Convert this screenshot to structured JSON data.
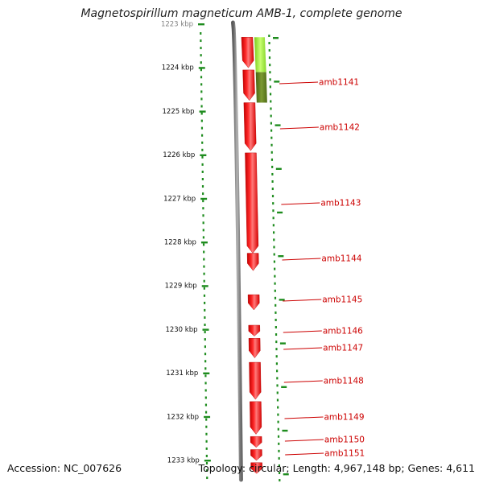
{
  "title": "Magnetospirillum magneticum AMB-1, complete genome",
  "accession": "Accession: NC_007626",
  "summary": "Topology: circular; Length: 4,967,148 bp; Genes: 4,611",
  "colors": {
    "gene_fill": "#ff0000",
    "gene_highlight": "#ff8a8a",
    "backbone": "#808080",
    "tick": "#1e8c1e",
    "label": "#cc0000",
    "label_line": "#cc0000",
    "feature_light": "#99e633",
    "feature_dark": "#5c7a1a"
  },
  "ruler": {
    "unit": "kbp",
    "start_kbp": 1223.3,
    "end_kbp": 1233.3,
    "ticks": [
      {
        "kbp": 1223,
        "label": "1223 kbp"
      },
      {
        "kbp": 1224,
        "label": "1224 kbp"
      },
      {
        "kbp": 1225,
        "label": "1225 kbp"
      },
      {
        "kbp": 1226,
        "label": "1226 kbp"
      },
      {
        "kbp": 1227,
        "label": "1227 kbp"
      },
      {
        "kbp": 1228,
        "label": "1228 kbp"
      },
      {
        "kbp": 1229,
        "label": "1229 kbp"
      },
      {
        "kbp": 1230,
        "label": "1230 kbp"
      },
      {
        "kbp": 1231,
        "label": "1231 kbp"
      },
      {
        "kbp": 1232,
        "label": "1232 kbp"
      },
      {
        "kbp": 1233,
        "label": "1233 kbp"
      }
    ]
  },
  "genes": [
    {
      "name": "amb1141",
      "start_kbp": 1223.3,
      "end_kbp": 1224.0
    },
    {
      "name": "amb1142",
      "start_kbp": 1224.05,
      "end_kbp": 1224.75
    },
    {
      "name": "amb1143",
      "start_kbp": 1224.8,
      "end_kbp": 1225.9
    },
    {
      "name": "amb1144",
      "start_kbp": 1225.95,
      "end_kbp": 1228.25
    },
    {
      "name": "amb1145",
      "start_kbp": 1228.25,
      "end_kbp": 1228.65
    },
    {
      "name": "amb1146",
      "start_kbp": 1229.2,
      "end_kbp": 1229.55
    },
    {
      "name": "amb1147",
      "start_kbp": 1229.9,
      "end_kbp": 1230.15
    },
    {
      "name": "amb1148",
      "start_kbp": 1230.2,
      "end_kbp": 1230.65
    },
    {
      "name": "amb1149",
      "start_kbp": 1230.75,
      "end_kbp": 1231.6
    },
    {
      "name": "amb1150",
      "start_kbp": 1231.65,
      "end_kbp": 1232.4
    },
    {
      "name": "amb1151",
      "start_kbp": 1232.45,
      "end_kbp": 1232.7
    },
    {
      "name": "",
      "start_kbp": 1232.75,
      "end_kbp": 1233.0
    },
    {
      "name": "",
      "start_kbp": 1233.05,
      "end_kbp": 1233.3
    }
  ],
  "features": [
    {
      "start_kbp": 1223.3,
      "end_kbp": 1224.1,
      "track": "outer",
      "shade": "light"
    },
    {
      "start_kbp": 1224.1,
      "end_kbp": 1224.8,
      "track": "outer",
      "shade": "dark"
    }
  ]
}
